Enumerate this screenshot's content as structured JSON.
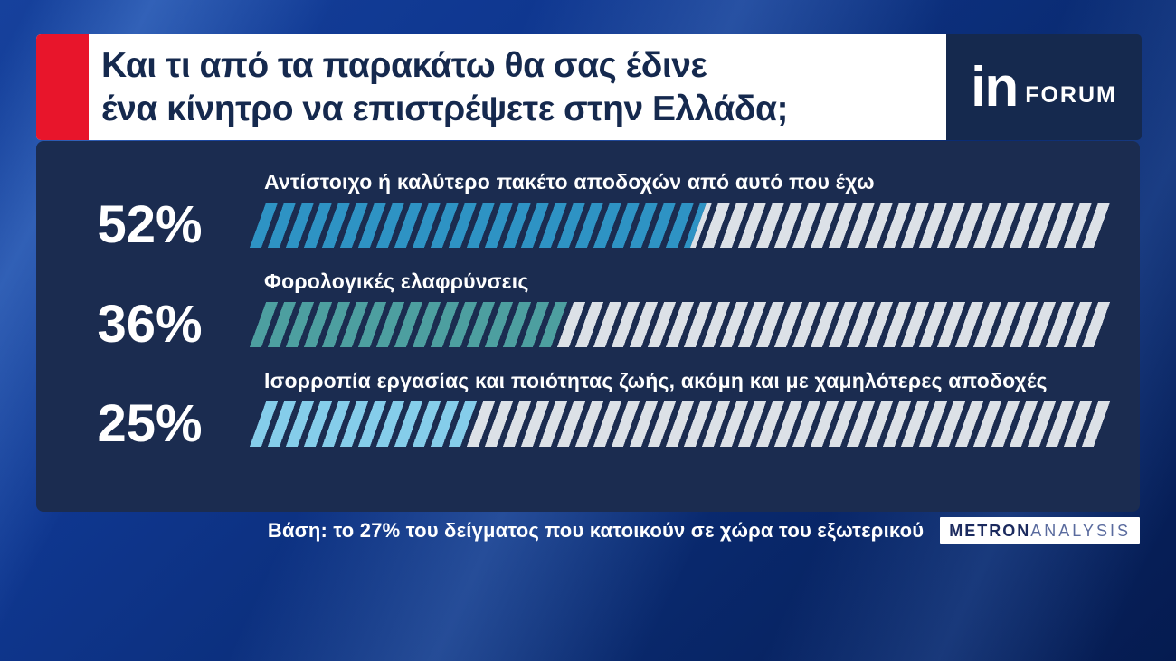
{
  "title": {
    "lines": [
      "Και τι από τα παρακάτω θα σας έδινε",
      "ένα κίνητρο να επιστρέψετε στην Ελλάδα;"
    ]
  },
  "logo": {
    "in": "in",
    "forum": "FORUM"
  },
  "chart_data": {
    "type": "bar",
    "orientation": "horizontal",
    "unit": "%",
    "xlim": [
      0,
      100
    ],
    "categories": [
      "Αντίστοιχο ή καλύτερο πακέτο αποδοχών από αυτό που έχω",
      "Φορολογικές ελαφρύνσεις",
      "Ισορροπία εργασίας και ποιότητας ζωής, ακόμη και με χαμηλότερες αποδοχές"
    ],
    "values": [
      52,
      36,
      25
    ],
    "value_labels": [
      "52%",
      "36%",
      "25%"
    ],
    "bar_colors": [
      "#2e93c4",
      "#4d9fa0",
      "#85cdea"
    ],
    "track_color": "#dce1e7",
    "style": "diagonal-hatch"
  },
  "footer": {
    "base_note": "Βάση: το 27% του δείγματος που κατοικούν σε χώρα του εξωτερικού",
    "brand": {
      "metron": "METRON",
      "analysis": "ANALYSIS"
    }
  },
  "colors": {
    "accent_red": "#e8152b",
    "navy": "#15294e",
    "panel": "#1b2c50",
    "background_blue": "#0f3790"
  }
}
